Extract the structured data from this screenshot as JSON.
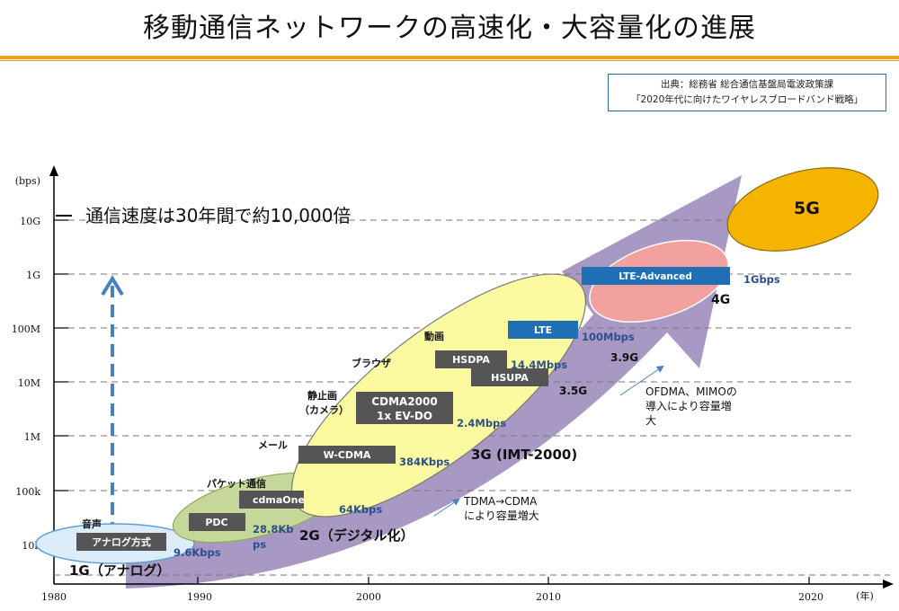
{
  "title": "移動通信ネットワークの高速化・大容量化の進展",
  "source": {
    "line1": "出典：総務省 総合通信基盤局電波政策課",
    "line2": "「2020年代に向けたワイヤレスブロードバンド戦略」"
  },
  "headline": "通信速度は30年間で約10,000倍",
  "y_axis": {
    "unit": "(bps)",
    "ticks": [
      "10k",
      "100k",
      "1M",
      "10M",
      "100M",
      "1G",
      "10G"
    ]
  },
  "x_axis": {
    "unit": "(年)",
    "ticks": [
      "1980",
      "1990",
      "2000",
      "2010",
      "2020"
    ]
  },
  "generations": {
    "g1": "1G（アナログ）",
    "g2": "2G（デジタル化）",
    "g3": "3G (IMT-2000)",
    "g39": "3.9G",
    "g35": "3.5G",
    "g4": "4G",
    "g5": "5G"
  },
  "systems": {
    "analog": "アナログ方式",
    "pdc": "PDC",
    "cdmaone": "cdmaOne",
    "wcdma": "W-CDMA",
    "cdma2000_1": "CDMA2000",
    "cdma2000_2": "1x EV-DO",
    "hsdpa": "HSDPA",
    "hsupa": "HSUPA",
    "lte": "LTE",
    "lte_adv": "LTE-Advanced"
  },
  "speeds": {
    "s1": "9.6Kbps",
    "s2a": "28.8Kb",
    "s2b": "ps",
    "s3": "64Kbps",
    "s4": "384Kbps",
    "s5": "2.4Mbps",
    "s6": "14.4Mbps",
    "s7": "100Mbps",
    "s8": "1Gbps"
  },
  "services": {
    "voice": "音声",
    "packet": "パケット通信",
    "mail": "メール",
    "photo1": "静止画",
    "photo2": "（カメラ）",
    "browser": "ブラウザ",
    "video": "動画"
  },
  "notes": {
    "tdma1": "TDMA→CDMA",
    "tdma2": "により容量増大",
    "ofdma1": "OFDMA、MIMOの",
    "ofdma2": "導入により容量増",
    "ofdma3": "大"
  },
  "colors": {
    "accent_orange": "#f0a020",
    "arrow_purple": "#a898c4",
    "dashed_blue": "#4a7fc1",
    "box_gray": "#555555",
    "box_blue": "#1f6fb7",
    "speed_blue": "#2c4f8c",
    "ellipse_1g": "#dcecf8",
    "ellipse_2g": "#c5d89a",
    "ellipse_3g": "#fbfaa0",
    "ellipse_4g": "#f3a0a0",
    "ellipse_5g": "#f5b400"
  }
}
